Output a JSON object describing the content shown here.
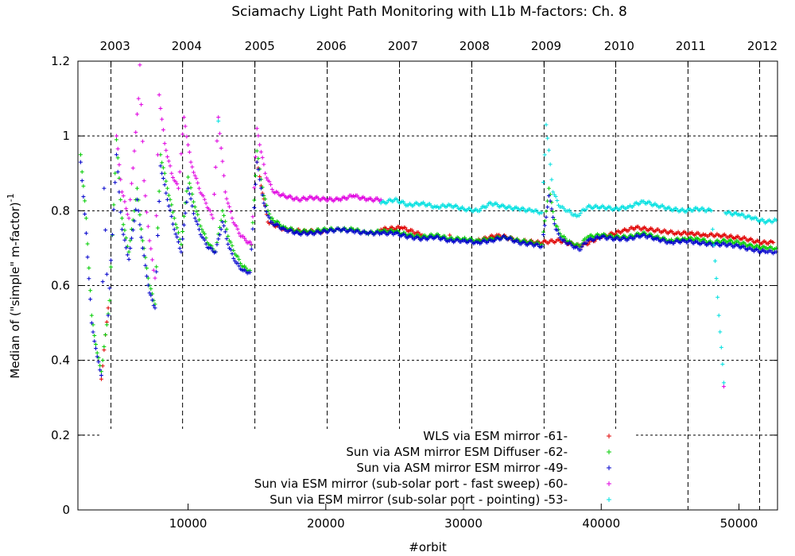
{
  "chart_data": {
    "type": "scatter",
    "title": "Sciamachy Light Path Monitoring with L1b M-factors: Ch. 8",
    "xlabel": "#orbit",
    "ylabel": "Median of (\"simple\" m-factor)",
    "ylabel_superscript": "-1",
    "xlim": [
      2000,
      52800
    ],
    "ylim": [
      0,
      1.2
    ],
    "x_ticks": [
      10000,
      20000,
      30000,
      40000,
      50000
    ],
    "x_tick_labels": [
      "10000",
      "20000",
      "30000",
      "40000",
      "50000"
    ],
    "y_ticks": [
      0,
      0.2,
      0.4,
      0.6,
      0.8,
      1,
      1.2
    ],
    "y_tick_labels": [
      "0",
      "0.2",
      "0.4",
      "0.6",
      "0.8",
      "1",
      "1.2"
    ],
    "top_axis_years": [
      {
        "label": "2003",
        "x": 4700
      },
      {
        "label": "2004",
        "x": 9900
      },
      {
        "label": "2005",
        "x": 15200
      },
      {
        "label": "2006",
        "x": 20400
      },
      {
        "label": "2007",
        "x": 25600
      },
      {
        "label": "2008",
        "x": 30800
      },
      {
        "label": "2009",
        "x": 36000
      },
      {
        "label": "2010",
        "x": 41300
      },
      {
        "label": "2011",
        "x": 46500
      },
      {
        "label": "2012",
        "x": 51700
      }
    ],
    "year_boundaries": [
      4400,
      9600,
      14850,
      20100,
      25350,
      30600,
      35850,
      41050,
      46300,
      51500
    ],
    "grid": true,
    "legend_position": "bottom-right",
    "series": [
      {
        "name": "WLS via ESM mirror -61-",
        "color": "#e00000",
        "points": [
          [
            3700,
            0.35
          ],
          [
            4200,
            0.54
          ],
          [
            15000,
            0.93
          ],
          [
            15800,
            0.77
          ],
          [
            17000,
            0.75
          ],
          [
            18500,
            0.745
          ],
          [
            20000,
            0.745
          ],
          [
            22000,
            0.75
          ],
          [
            24000,
            0.75
          ],
          [
            25500,
            0.755
          ],
          [
            27000,
            0.735
          ],
          [
            29000,
            0.735
          ],
          [
            31000,
            0.72
          ],
          [
            32500,
            0.735
          ],
          [
            34000,
            0.72
          ],
          [
            35500,
            0.715
          ],
          [
            37000,
            0.72
          ],
          [
            38500,
            0.705
          ],
          [
            40000,
            0.73
          ],
          [
            41500,
            0.745
          ],
          [
            42500,
            0.755
          ],
          [
            43500,
            0.75
          ],
          [
            44500,
            0.745
          ],
          [
            45500,
            0.74
          ],
          [
            46500,
            0.74
          ],
          [
            47500,
            0.735
          ],
          [
            48500,
            0.735
          ],
          [
            49500,
            0.73
          ],
          [
            50500,
            0.725
          ],
          [
            51500,
            0.715
          ],
          [
            52500,
            0.715
          ]
        ]
      },
      {
        "name": "Sun via ASM mirror  ESM Diffuser -62-",
        "color": "#00cc00",
        "points": [
          [
            2200,
            0.95
          ],
          [
            2600,
            0.78
          ],
          [
            3000,
            0.52
          ],
          [
            3400,
            0.42
          ],
          [
            3700,
            0.37
          ],
          [
            4300,
            0.56
          ],
          [
            4800,
            0.99
          ],
          [
            5200,
            0.78
          ],
          [
            5700,
            0.69
          ],
          [
            6300,
            0.86
          ],
          [
            6700,
            0.72
          ],
          [
            7200,
            0.6
          ],
          [
            7600,
            0.55
          ],
          [
            8000,
            0.95
          ],
          [
            8500,
            0.86
          ],
          [
            9000,
            0.78
          ],
          [
            9500,
            0.71
          ],
          [
            10000,
            0.89
          ],
          [
            10500,
            0.81
          ],
          [
            11000,
            0.75
          ],
          [
            11500,
            0.71
          ],
          [
            12000,
            0.69
          ],
          [
            12500,
            0.8
          ],
          [
            13000,
            0.72
          ],
          [
            13500,
            0.68
          ],
          [
            14000,
            0.65
          ],
          [
            14500,
            0.64
          ],
          [
            15000,
            0.96
          ],
          [
            15500,
            0.84
          ],
          [
            16000,
            0.78
          ],
          [
            17000,
            0.755
          ],
          [
            18000,
            0.745
          ],
          [
            19000,
            0.745
          ],
          [
            20000,
            0.75
          ],
          [
            21000,
            0.75
          ],
          [
            22000,
            0.75
          ],
          [
            23000,
            0.74
          ],
          [
            24000,
            0.745
          ],
          [
            25000,
            0.745
          ],
          [
            26000,
            0.735
          ],
          [
            27000,
            0.73
          ],
          [
            28000,
            0.735
          ],
          [
            29000,
            0.725
          ],
          [
            30000,
            0.725
          ],
          [
            31000,
            0.72
          ],
          [
            32000,
            0.725
          ],
          [
            33000,
            0.73
          ],
          [
            34000,
            0.72
          ],
          [
            35000,
            0.715
          ],
          [
            35700,
            0.71
          ],
          [
            36200,
            0.86
          ],
          [
            36700,
            0.76
          ],
          [
            37200,
            0.73
          ],
          [
            37800,
            0.715
          ],
          [
            38400,
            0.705
          ],
          [
            39000,
            0.73
          ],
          [
            40000,
            0.735
          ],
          [
            41000,
            0.73
          ],
          [
            42000,
            0.73
          ],
          [
            43000,
            0.74
          ],
          [
            44000,
            0.73
          ],
          [
            45000,
            0.72
          ],
          [
            46000,
            0.725
          ],
          [
            47000,
            0.725
          ],
          [
            48000,
            0.715
          ],
          [
            49000,
            0.72
          ],
          [
            50000,
            0.715
          ],
          [
            51000,
            0.705
          ],
          [
            52000,
            0.7
          ],
          [
            52700,
            0.7
          ]
        ]
      },
      {
        "name": "Sun via ASM mirror  ESM mirror -49-",
        "color": "#0000cc",
        "points": [
          [
            2200,
            0.93
          ],
          [
            2600,
            0.74
          ],
          [
            3000,
            0.5
          ],
          [
            3400,
            0.41
          ],
          [
            3700,
            0.36
          ],
          [
            3900,
            0.86
          ],
          [
            4200,
            0.52
          ],
          [
            4800,
            0.95
          ],
          [
            5200,
            0.75
          ],
          [
            5700,
            0.67
          ],
          [
            6300,
            0.83
          ],
          [
            6700,
            0.7
          ],
          [
            7200,
            0.58
          ],
          [
            7600,
            0.54
          ],
          [
            8000,
            0.92
          ],
          [
            8500,
            0.83
          ],
          [
            9000,
            0.75
          ],
          [
            9500,
            0.69
          ],
          [
            10000,
            0.86
          ],
          [
            10500,
            0.78
          ],
          [
            11000,
            0.73
          ],
          [
            11500,
            0.7
          ],
          [
            12000,
            0.69
          ],
          [
            12500,
            0.77
          ],
          [
            13000,
            0.7
          ],
          [
            13500,
            0.66
          ],
          [
            14000,
            0.64
          ],
          [
            14500,
            0.635
          ],
          [
            15000,
            0.93
          ],
          [
            15500,
            0.82
          ],
          [
            16000,
            0.77
          ],
          [
            17000,
            0.75
          ],
          [
            18000,
            0.74
          ],
          [
            19000,
            0.74
          ],
          [
            20000,
            0.745
          ],
          [
            21000,
            0.75
          ],
          [
            22000,
            0.745
          ],
          [
            23000,
            0.74
          ],
          [
            24000,
            0.74
          ],
          [
            25000,
            0.74
          ],
          [
            26000,
            0.73
          ],
          [
            27000,
            0.725
          ],
          [
            28000,
            0.73
          ],
          [
            29000,
            0.72
          ],
          [
            30000,
            0.72
          ],
          [
            31000,
            0.715
          ],
          [
            32000,
            0.72
          ],
          [
            33000,
            0.73
          ],
          [
            34000,
            0.715
          ],
          [
            35000,
            0.71
          ],
          [
            35700,
            0.705
          ],
          [
            36200,
            0.84
          ],
          [
            36700,
            0.75
          ],
          [
            37200,
            0.72
          ],
          [
            37800,
            0.71
          ],
          [
            38400,
            0.695
          ],
          [
            39000,
            0.72
          ],
          [
            40000,
            0.73
          ],
          [
            41000,
            0.725
          ],
          [
            42000,
            0.725
          ],
          [
            43000,
            0.735
          ],
          [
            44000,
            0.725
          ],
          [
            45000,
            0.715
          ],
          [
            46000,
            0.72
          ],
          [
            47000,
            0.715
          ],
          [
            48000,
            0.71
          ],
          [
            49000,
            0.71
          ],
          [
            50000,
            0.705
          ],
          [
            51000,
            0.695
          ],
          [
            52000,
            0.69
          ],
          [
            52700,
            0.69
          ]
        ]
      },
      {
        "name": "Sun via ESM mirror (sub-solar port - fast sweep) -60-",
        "color": "#e000e0",
        "points": [
          [
            4800,
            1.0
          ],
          [
            5200,
            0.85
          ],
          [
            5700,
            0.78
          ],
          [
            6400,
            1.1
          ],
          [
            6500,
            1.19
          ],
          [
            6800,
            0.88
          ],
          [
            7200,
            0.72
          ],
          [
            7600,
            0.62
          ],
          [
            7900,
            1.11
          ],
          [
            8300,
            0.98
          ],
          [
            8800,
            0.9
          ],
          [
            9300,
            0.86
          ],
          [
            9700,
            1.05
          ],
          [
            10200,
            0.93
          ],
          [
            10800,
            0.86
          ],
          [
            11300,
            0.82
          ],
          [
            11800,
            0.78
          ],
          [
            12200,
            1.05
          ],
          [
            12700,
            0.85
          ],
          [
            13200,
            0.78
          ],
          [
            13700,
            0.74
          ],
          [
            14200,
            0.72
          ],
          [
            14600,
            0.71
          ],
          [
            15000,
            1.02
          ],
          [
            15600,
            0.9
          ],
          [
            16200,
            0.85
          ],
          [
            17000,
            0.84
          ],
          [
            18000,
            0.83
          ],
          [
            19000,
            0.835
          ],
          [
            20000,
            0.83
          ],
          [
            21000,
            0.83
          ],
          [
            22000,
            0.84
          ],
          [
            23000,
            0.83
          ],
          [
            24000,
            0.83
          ],
          [
            48900,
            0.33
          ]
        ]
      },
      {
        "name": "Sun via ESM mirror (sub-solar port - pointing) -53-",
        "color": "#00e0e0",
        "points": [
          [
            12200,
            1.04
          ],
          [
            24000,
            0.82
          ],
          [
            25000,
            0.83
          ],
          [
            26000,
            0.815
          ],
          [
            27000,
            0.82
          ],
          [
            28000,
            0.81
          ],
          [
            29000,
            0.815
          ],
          [
            30000,
            0.805
          ],
          [
            31000,
            0.8
          ],
          [
            32000,
            0.82
          ],
          [
            33000,
            0.81
          ],
          [
            34000,
            0.805
          ],
          [
            35000,
            0.8
          ],
          [
            35700,
            0.795
          ],
          [
            36000,
            1.03
          ],
          [
            36500,
            0.85
          ],
          [
            37000,
            0.81
          ],
          [
            37600,
            0.8
          ],
          [
            38200,
            0.785
          ],
          [
            39000,
            0.81
          ],
          [
            40000,
            0.81
          ],
          [
            41000,
            0.805
          ],
          [
            42000,
            0.81
          ],
          [
            43000,
            0.825
          ],
          [
            44000,
            0.815
          ],
          [
            45000,
            0.805
          ],
          [
            46000,
            0.8
          ],
          [
            47000,
            0.805
          ],
          [
            48000,
            0.8
          ],
          [
            48900,
            0.34
          ],
          [
            49000,
            0.795
          ],
          [
            50000,
            0.79
          ],
          [
            51000,
            0.78
          ],
          [
            52000,
            0.77
          ],
          [
            52700,
            0.775
          ]
        ]
      }
    ]
  }
}
